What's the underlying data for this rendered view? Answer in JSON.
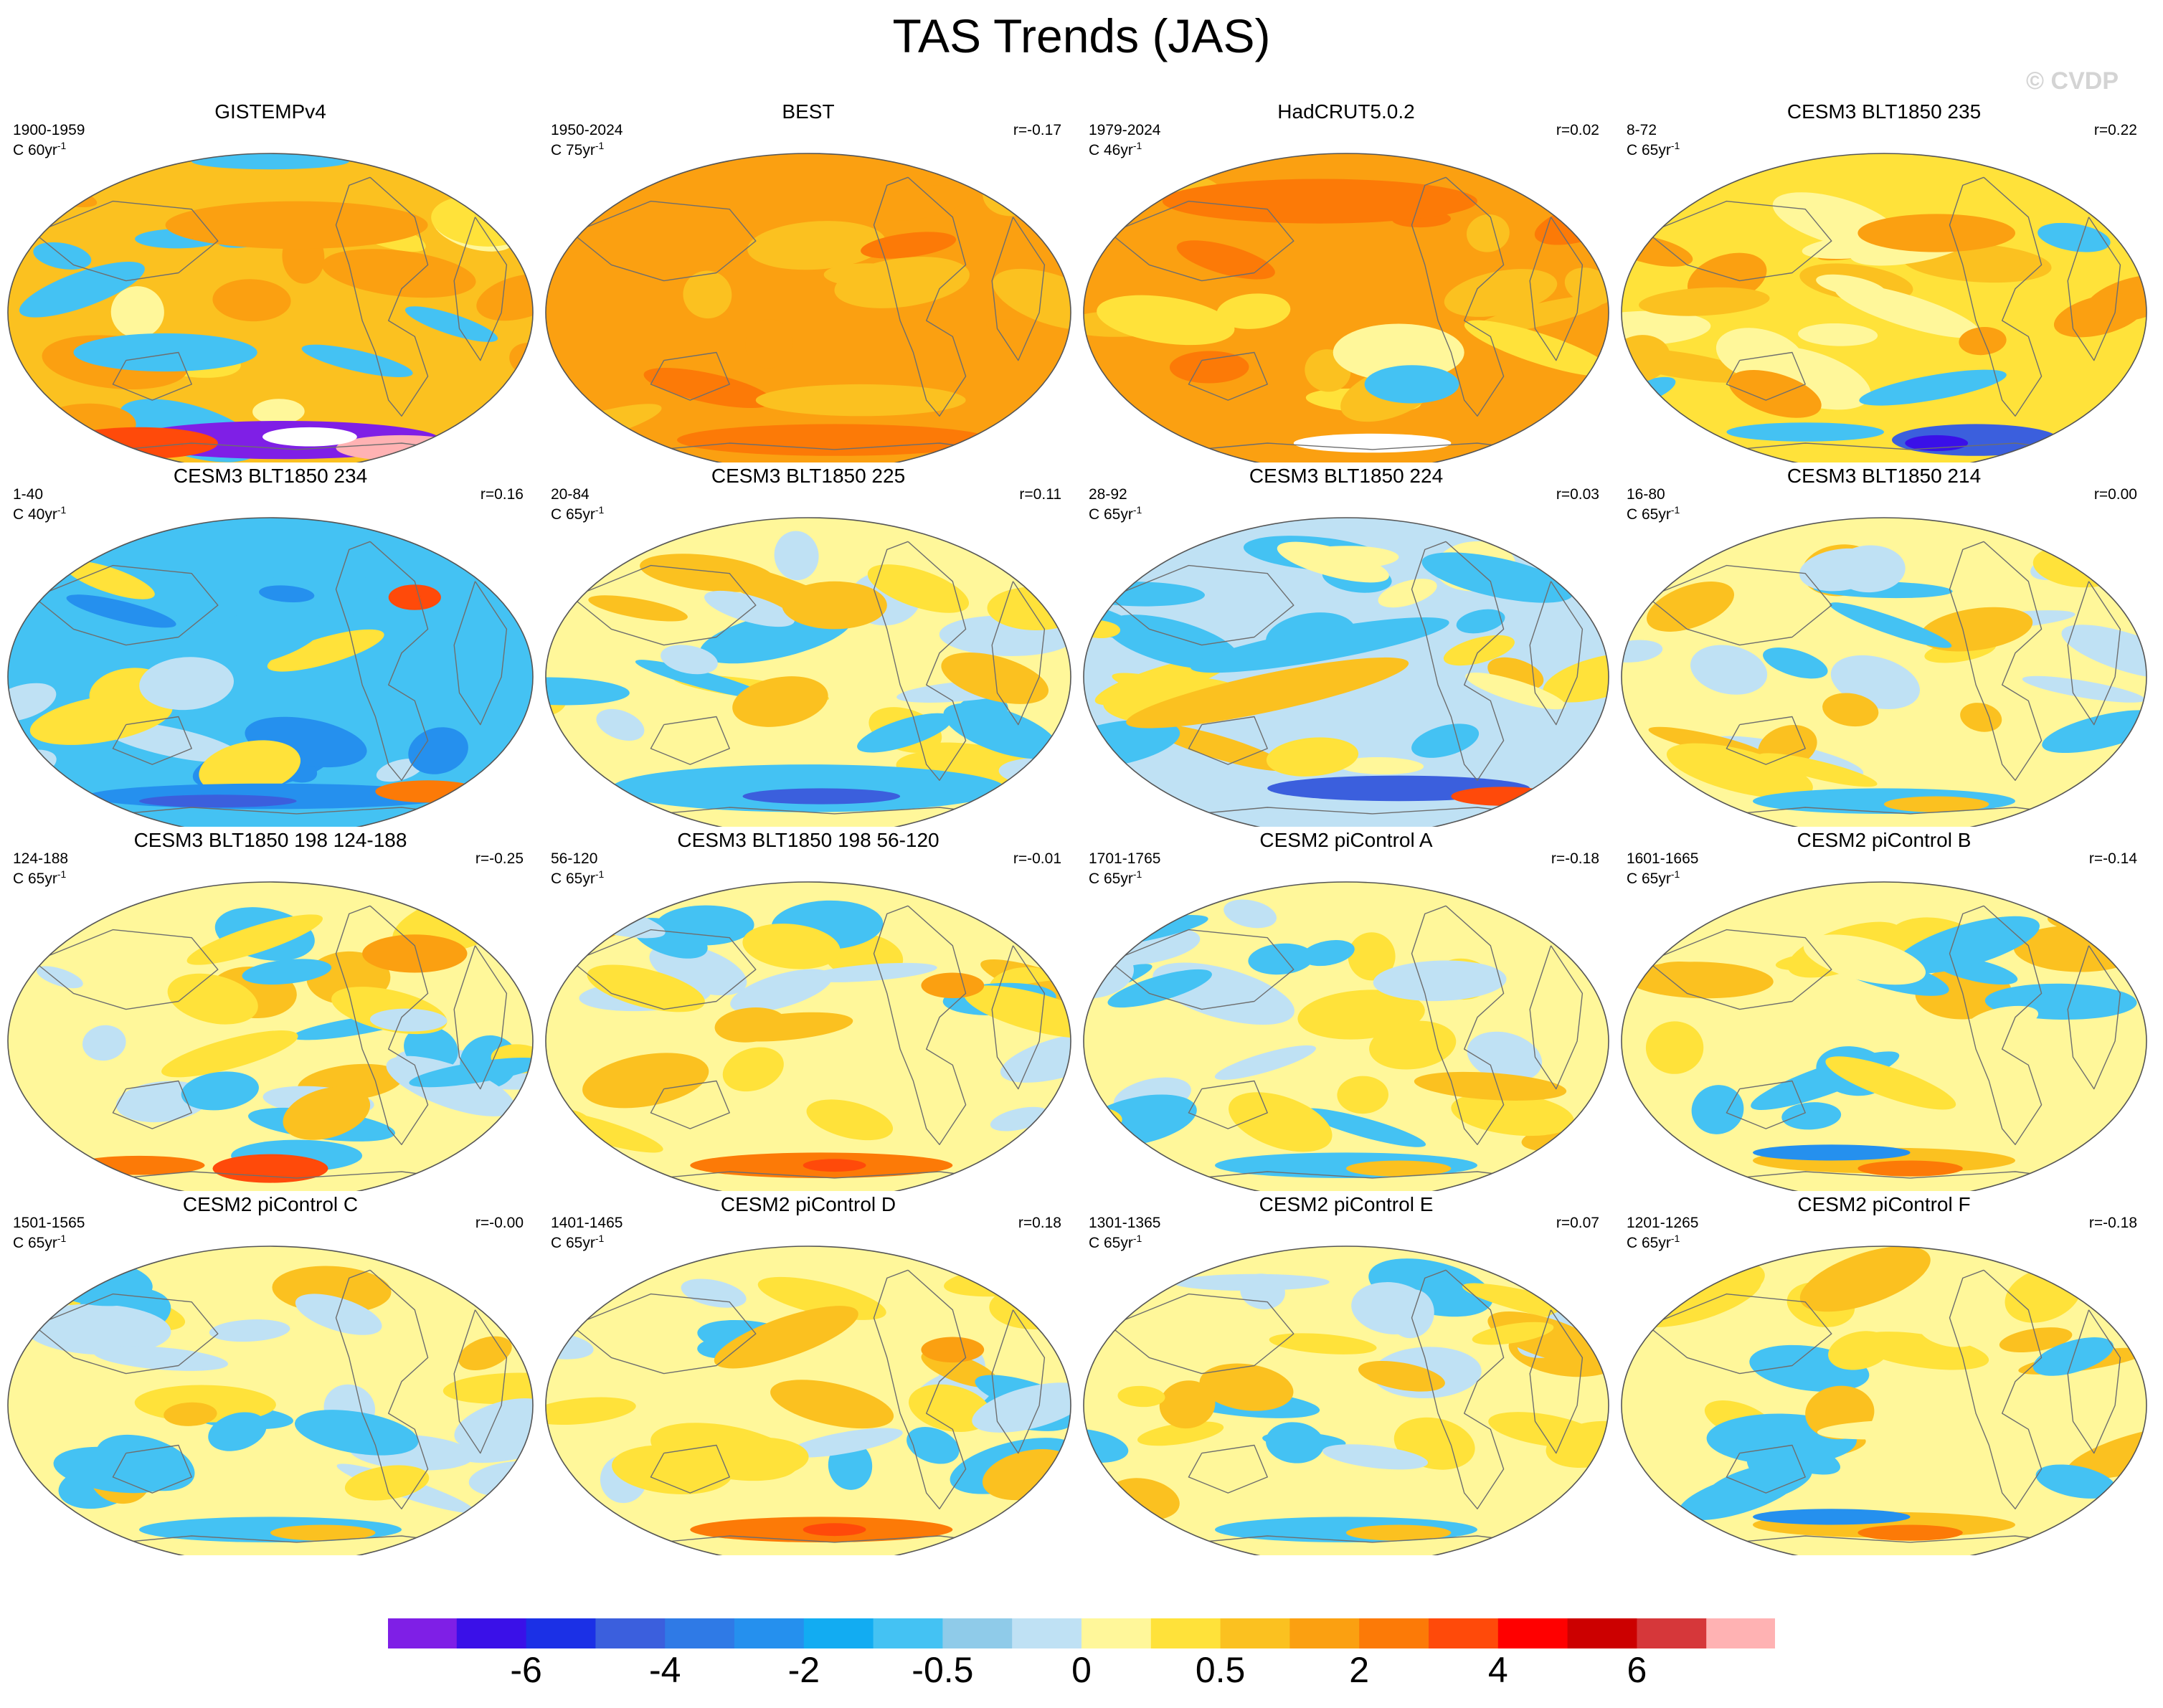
{
  "title": "TAS Trends (JAS)",
  "watermark": "© CVDP",
  "unit_prefix": "C",
  "unit_suffix": "yr",
  "unit_exponent": "-1",
  "panels": [
    {
      "title": "GISTEMPv4",
      "period": "1900-1959",
      "duration": "60",
      "corr": "",
      "pattern": "gistemp"
    },
    {
      "title": "BEST",
      "period": "1950-2024",
      "duration": "75",
      "corr": "r=-0.17",
      "pattern": "best"
    },
    {
      "title": "HadCRUT5.0.2",
      "period": "1979-2024",
      "duration": "46",
      "corr": "r=0.02",
      "pattern": "hadcrut"
    },
    {
      "title": "CESM3 BLT1850 235",
      "period": "8-72",
      "duration": "65",
      "corr": "r=0.22",
      "pattern": "warm"
    },
    {
      "title": "CESM3 BLT1850 234",
      "period": "1-40",
      "duration": "40",
      "corr": "r=0.16",
      "pattern": "cold"
    },
    {
      "title": "CESM3 BLT1850 225",
      "period": "20-84",
      "duration": "65",
      "corr": "r=0.11",
      "pattern": "mixed_cool"
    },
    {
      "title": "CESM3 BLT1850 224",
      "period": "28-92",
      "duration": "65",
      "corr": "r=0.03",
      "pattern": "mixed_cool2"
    },
    {
      "title": "CESM3 BLT1850 214",
      "period": "16-80",
      "duration": "65",
      "corr": "r=0.00",
      "pattern": "mixed"
    },
    {
      "title": "CESM3 BLT1850 198 124-188",
      "period": "124-188",
      "duration": "65",
      "corr": "r=-0.25",
      "pattern": "mixed_warm"
    },
    {
      "title": "CESM3 BLT1850 198 56-120",
      "period": "56-120",
      "duration": "65",
      "corr": "r=-0.01",
      "pattern": "mixed2"
    },
    {
      "title": "CESM2 piControl A",
      "period": "1701-1765",
      "duration": "65",
      "corr": "r=-0.18",
      "pattern": "mixed"
    },
    {
      "title": "CESM2 piControl B",
      "period": "1601-1665",
      "duration": "65",
      "corr": "r=-0.14",
      "pattern": "mixed_warm2"
    },
    {
      "title": "CESM2 piControl C",
      "period": "1501-1565",
      "duration": "65",
      "corr": "r=-0.00",
      "pattern": "mixed"
    },
    {
      "title": "CESM2 piControl D",
      "period": "1401-1465",
      "duration": "65",
      "corr": "r=0.18",
      "pattern": "mixed2"
    },
    {
      "title": "CESM2 piControl E",
      "period": "1301-1365",
      "duration": "65",
      "corr": "r=0.07",
      "pattern": "mixed"
    },
    {
      "title": "CESM2 piControl F",
      "period": "1201-1265",
      "duration": "65",
      "corr": "r=-0.18",
      "pattern": "mixed_warm2"
    }
  ],
  "colorbar": {
    "colors": [
      "#7f1fe6",
      "#3a10e8",
      "#1b30e6",
      "#3b5fdd",
      "#2f7ae6",
      "#2590ee",
      "#12acf2",
      "#44c2f3",
      "#8fcbe9",
      "#bfe1f4",
      "#fff79a",
      "#ffe23a",
      "#fbc120",
      "#fba011",
      "#fc7a07",
      "#ff4a0a",
      "#ff0000",
      "#cc0000",
      "#d6373a",
      "#ffb2b3"
    ],
    "labels": [
      "-6",
      "-4",
      "-2",
      "-0.5",
      "0",
      "0.5",
      "2",
      "4",
      "6"
    ]
  }
}
